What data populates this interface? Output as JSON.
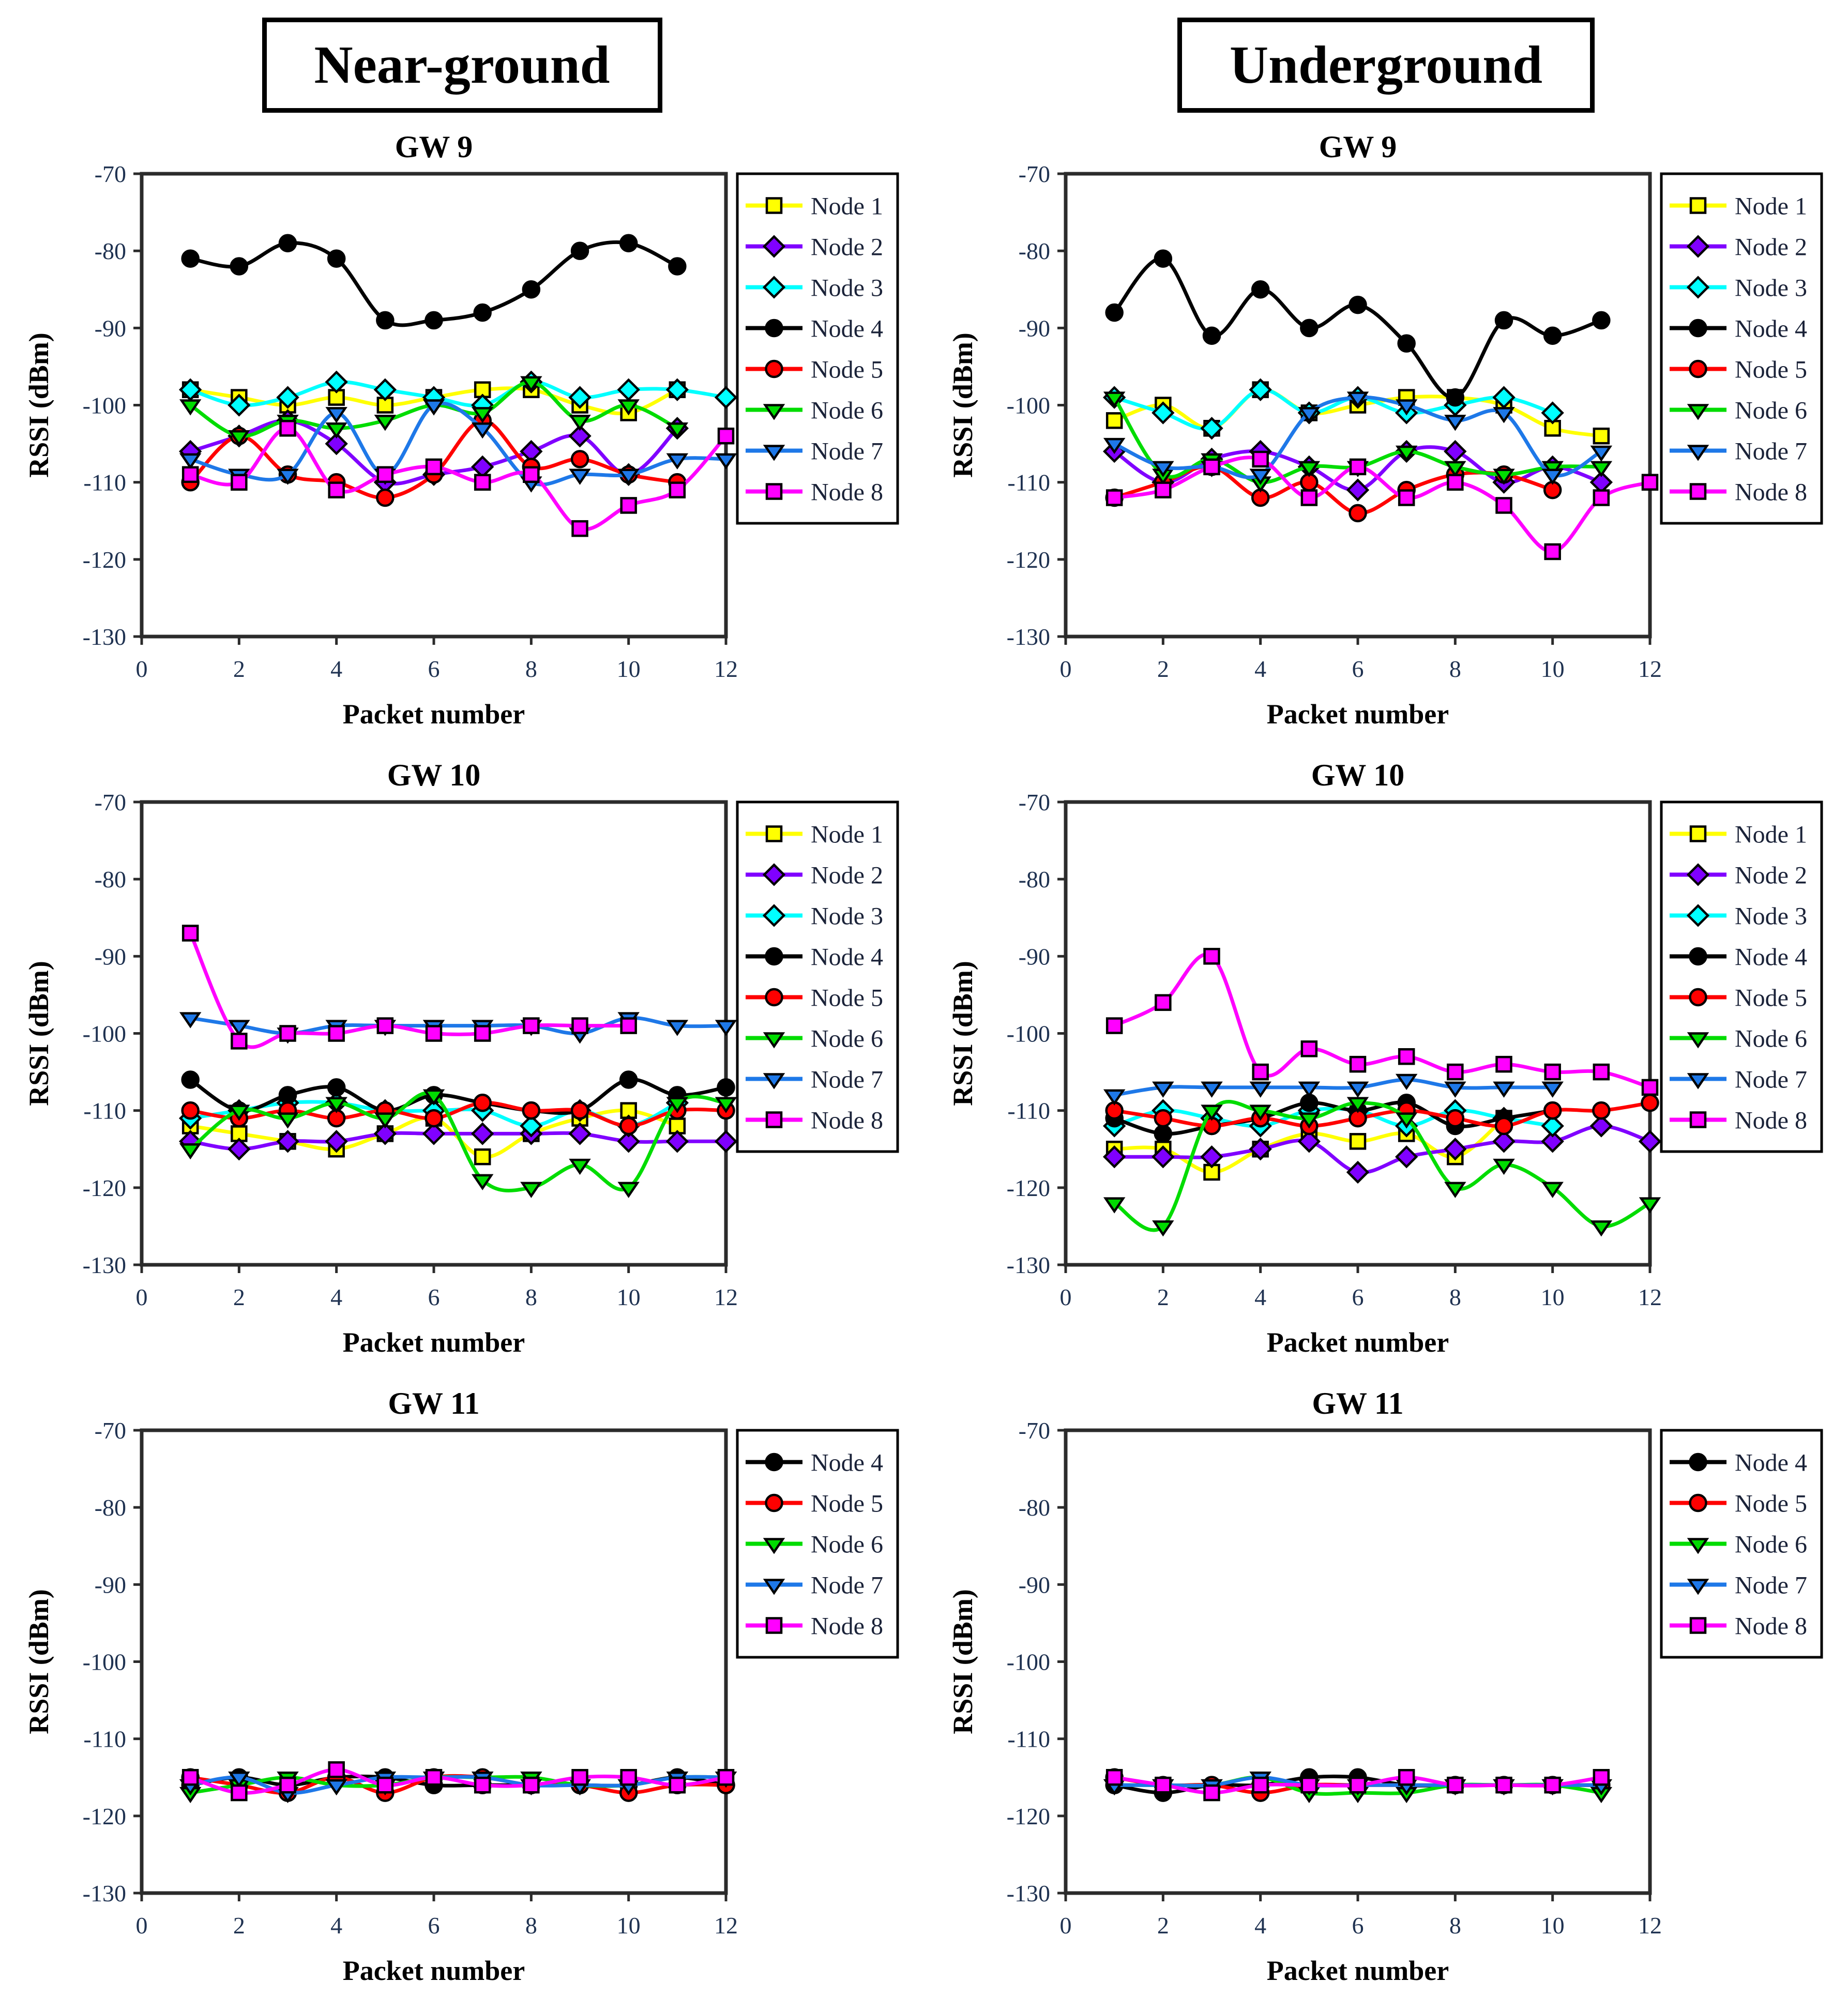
{
  "headers": [
    {
      "label": "Near-ground"
    },
    {
      "label": "Underground"
    }
  ],
  "style": {
    "tick_label_color": "#1f3251",
    "axis_frame_color": "#2b2b2b",
    "title_color": "#000000",
    "legend_text_color": "#1a2238",
    "background": "#ffffff"
  },
  "node_styles": {
    "Node 1": {
      "color": "#FFFF00",
      "marker": "square"
    },
    "Node 2": {
      "color": "#8000FF",
      "marker": "diamond"
    },
    "Node 3": {
      "color": "#00FFFF",
      "marker": "diamond"
    },
    "Node 4": {
      "color": "#000000",
      "marker": "circle"
    },
    "Node 5": {
      "color": "#FF0000",
      "marker": "circle"
    },
    "Node 6": {
      "color": "#00DC00",
      "marker": "triangle-down"
    },
    "Node 7": {
      "color": "#1E78E8",
      "marker": "triangle-down"
    },
    "Node 8": {
      "color": "#FF00FF",
      "marker": "square"
    }
  },
  "chart_data": [
    {
      "type": "line",
      "title": "GW 9",
      "column": "Near-ground",
      "xlabel": "Packet number",
      "ylabel": "RSSI (dBm)",
      "xlim": [
        0,
        12
      ],
      "ylim": [
        -130,
        -70
      ],
      "xticks": [
        0,
        2,
        4,
        6,
        8,
        10,
        12
      ],
      "yticks": [
        -70,
        -80,
        -90,
        -100,
        -110,
        -120,
        -130
      ],
      "grid": false,
      "legend_position": "right",
      "x_start": 1,
      "series": [
        {
          "name": "Node 1",
          "values": [
            -98,
            -99,
            -100,
            -99,
            -100,
            -99,
            -98,
            -98,
            -100,
            -101,
            -98
          ]
        },
        {
          "name": "Node 2",
          "values": [
            -106,
            -104,
            -102,
            -105,
            -110,
            -109,
            -108,
            -106,
            -104,
            -109,
            -103
          ]
        },
        {
          "name": "Node 3",
          "values": [
            -98,
            -100,
            -99,
            -97,
            -98,
            -99,
            -100,
            -97,
            -99,
            -98,
            -98,
            -99
          ]
        },
        {
          "name": "Node 4",
          "values": [
            -81,
            -82,
            -79,
            -81,
            -89,
            -89,
            -88,
            -85,
            -80,
            -79,
            -82
          ]
        },
        {
          "name": "Node 5",
          "values": [
            -110,
            -104,
            -109,
            -110,
            -112,
            -109,
            -102,
            -108,
            -107,
            -109,
            -110
          ]
        },
        {
          "name": "Node 6",
          "values": [
            -100,
            -104,
            -102,
            -103,
            -102,
            -100,
            -101,
            -97,
            -102,
            -100,
            -103
          ]
        },
        {
          "name": "Node 7",
          "values": [
            -107,
            -109,
            -109,
            -101,
            -109,
            -100,
            -103,
            -110,
            -109,
            -109,
            -107,
            -107
          ]
        },
        {
          "name": "Node 8",
          "values": [
            -109,
            -110,
            -103,
            -111,
            -109,
            -108,
            -110,
            -109,
            -116,
            -113,
            -111,
            -104
          ]
        }
      ]
    },
    {
      "type": "line",
      "title": "GW 9",
      "column": "Underground",
      "xlabel": "Packet number",
      "ylabel": "RSSI (dBm)",
      "xlim": [
        0,
        12
      ],
      "ylim": [
        -130,
        -70
      ],
      "xticks": [
        0,
        2,
        4,
        6,
        8,
        10,
        12
      ],
      "yticks": [
        -70,
        -80,
        -90,
        -100,
        -110,
        -120,
        -130
      ],
      "grid": false,
      "legend_position": "right",
      "x_start": 1,
      "series": [
        {
          "name": "Node 1",
          "values": [
            -102,
            -100,
            -103,
            -98,
            -101,
            -100,
            -99,
            -99,
            -100,
            -103,
            -104
          ]
        },
        {
          "name": "Node 2",
          "values": [
            -106,
            -110,
            -107,
            -106,
            -108,
            -111,
            -106,
            -106,
            -110,
            -108,
            -110
          ]
        },
        {
          "name": "Node 3",
          "values": [
            -99,
            -101,
            -103,
            -98,
            -101,
            -99,
            -101,
            -100,
            -99,
            -101
          ]
        },
        {
          "name": "Node 4",
          "values": [
            -88,
            -81,
            -91,
            -85,
            -90,
            -87,
            -92,
            -99,
            -89,
            -91,
            -89
          ]
        },
        {
          "name": "Node 5",
          "values": [
            -112,
            -110,
            -108,
            -112,
            -110,
            -114,
            -111,
            -109,
            -109,
            -111
          ]
        },
        {
          "name": "Node 6",
          "values": [
            -99,
            -109,
            -107,
            -110,
            -108,
            -108,
            -106,
            -108,
            -109,
            -108,
            -108
          ]
        },
        {
          "name": "Node 7",
          "values": [
            -105,
            -108,
            -108,
            -109,
            -101,
            -99,
            -100,
            -102,
            -101,
            -109,
            -106
          ]
        },
        {
          "name": "Node 8",
          "values": [
            -112,
            -111,
            -108,
            -107,
            -112,
            -108,
            -112,
            -110,
            -113,
            -119,
            -112,
            -110
          ]
        }
      ]
    },
    {
      "type": "line",
      "title": "GW 10",
      "column": "Near-ground",
      "xlabel": "Packet number",
      "ylabel": "RSSI (dBm)",
      "xlim": [
        0,
        12
      ],
      "ylim": [
        -130,
        -70
      ],
      "xticks": [
        0,
        2,
        4,
        6,
        8,
        10,
        12
      ],
      "yticks": [
        -70,
        -80,
        -90,
        -100,
        -110,
        -120,
        -130
      ],
      "grid": false,
      "legend_position": "right",
      "x_start": 1,
      "series": [
        {
          "name": "Node 1",
          "values": [
            -112,
            -113,
            -114,
            -115,
            -113,
            -111,
            -116,
            -113,
            -111,
            -110,
            -112
          ]
        },
        {
          "name": "Node 2",
          "values": [
            -114,
            -115,
            -114,
            -114,
            -113,
            -113,
            -113,
            -113,
            -113,
            -114,
            -114,
            -114
          ]
        },
        {
          "name": "Node 3",
          "values": [
            -111,
            -110,
            -109,
            -109,
            -110,
            -110,
            -110,
            -112,
            -110,
            -112,
            -109
          ]
        },
        {
          "name": "Node 4",
          "values": [
            -106,
            -110,
            -108,
            -107,
            -110,
            -108,
            -109,
            -110,
            -110,
            -106,
            -108,
            -107
          ]
        },
        {
          "name": "Node 5",
          "values": [
            -110,
            -111,
            -110,
            -111,
            -110,
            -111,
            -109,
            -110,
            -110,
            -112,
            -110,
            -110
          ]
        },
        {
          "name": "Node 6",
          "values": [
            -115,
            -110,
            -111,
            -109,
            -111,
            -108,
            -119,
            -120,
            -117,
            -120,
            -109,
            -109
          ]
        },
        {
          "name": "Node 7",
          "values": [
            -98,
            -99,
            -100,
            -99,
            -99,
            -99,
            -99,
            -99,
            -100,
            -98,
            -99,
            -99
          ]
        },
        {
          "name": "Node 8",
          "values": [
            -87,
            -101,
            -100,
            -100,
            -99,
            -100,
            -100,
            -99,
            -99,
            -99
          ]
        }
      ]
    },
    {
      "type": "line",
      "title": "GW 10",
      "column": "Underground",
      "xlabel": "Packet number",
      "ylabel": "RSSI (dBm)",
      "xlim": [
        0,
        12
      ],
      "ylim": [
        -130,
        -70
      ],
      "xticks": [
        0,
        2,
        4,
        6,
        8,
        10,
        12
      ],
      "yticks": [
        -70,
        -80,
        -90,
        -100,
        -110,
        -120,
        -130
      ],
      "grid": false,
      "legend_position": "right",
      "x_start": 1,
      "series": [
        {
          "name": "Node 1",
          "values": [
            -115,
            -115,
            -118,
            -115,
            -113,
            -114,
            -113,
            -116,
            -111
          ]
        },
        {
          "name": "Node 2",
          "values": [
            -116,
            -116,
            -116,
            -115,
            -114,
            -118,
            -116,
            -115,
            -114,
            -114,
            -112,
            -114
          ]
        },
        {
          "name": "Node 3",
          "values": [
            -112,
            -110,
            -111,
            -112,
            -110,
            -110,
            -112,
            -110,
            -111,
            -112
          ]
        },
        {
          "name": "Node 4",
          "values": [
            -111,
            -113,
            -112,
            -111,
            -109,
            -110,
            -109,
            -112,
            -111,
            -110
          ]
        },
        {
          "name": "Node 5",
          "values": [
            -110,
            -111,
            -112,
            -111,
            -112,
            -111,
            -110,
            -111,
            -112,
            -110,
            -110,
            -109
          ]
        },
        {
          "name": "Node 6",
          "values": [
            -122,
            -125,
            -110,
            -110,
            -111,
            -109,
            -111,
            -120,
            -117,
            -120,
            -125,
            -122
          ]
        },
        {
          "name": "Node 7",
          "values": [
            -108,
            -107,
            -107,
            -107,
            -107,
            -107,
            -106,
            -107,
            -107,
            -107
          ]
        },
        {
          "name": "Node 8",
          "values": [
            -99,
            -96,
            -90,
            -105,
            -102,
            -104,
            -103,
            -105,
            -104,
            -105,
            -105,
            -107
          ]
        }
      ]
    },
    {
      "type": "line",
      "title": "GW 11",
      "column": "Near-ground",
      "xlabel": "Packet number",
      "ylabel": "RSSI (dBm)",
      "xlim": [
        0,
        12
      ],
      "ylim": [
        -130,
        -70
      ],
      "xticks": [
        0,
        2,
        4,
        6,
        8,
        10,
        12
      ],
      "yticks": [
        -70,
        -80,
        -90,
        -100,
        -110,
        -120,
        -130
      ],
      "grid": false,
      "legend_position": "right",
      "x_start": 1,
      "series": [
        {
          "name": "Node 4",
          "values": [
            -116,
            -115,
            -116,
            -115,
            -115,
            -116,
            -116,
            -116,
            -116,
            -116,
            -115,
            -116
          ]
        },
        {
          "name": "Node 5",
          "values": [
            -115,
            -116,
            -117,
            -115,
            -117,
            -115,
            -115,
            -116,
            -116,
            -117,
            -116,
            -116
          ]
        },
        {
          "name": "Node 6",
          "values": [
            -117,
            -116,
            -115,
            -116,
            -116,
            -115,
            -115,
            -115,
            -116,
            -116,
            -115,
            -115
          ]
        },
        {
          "name": "Node 7",
          "values": [
            -116,
            -115,
            -117,
            -116,
            -115,
            -115,
            -115,
            -116,
            -116,
            -116,
            -115,
            -115
          ]
        },
        {
          "name": "Node 8",
          "values": [
            -115,
            -117,
            -116,
            -114,
            -116,
            -115,
            -116,
            -116,
            -115,
            -115,
            -116,
            -115
          ]
        }
      ]
    },
    {
      "type": "line",
      "title": "GW 11",
      "column": "Underground",
      "xlabel": "Packet number",
      "ylabel": "RSSI (dBm)",
      "xlim": [
        0,
        12
      ],
      "ylim": [
        -130,
        -70
      ],
      "xticks": [
        0,
        2,
        4,
        6,
        8,
        10,
        12
      ],
      "yticks": [
        -70,
        -80,
        -90,
        -100,
        -110,
        -120,
        -130
      ],
      "grid": false,
      "legend_position": "right",
      "x_start": 1,
      "series": [
        {
          "name": "Node 4",
          "values": [
            -116,
            -117,
            -116,
            -116,
            -115,
            -115,
            -116,
            -116,
            -116,
            -116,
            -116
          ]
        },
        {
          "name": "Node 5",
          "values": [
            -115,
            -116,
            -116,
            -117,
            -116,
            -116,
            -116,
            -116,
            -116,
            -116,
            -116
          ]
        },
        {
          "name": "Node 6",
          "values": [
            -116,
            -116,
            -116,
            -115,
            -117,
            -117,
            -117,
            -116,
            -116,
            -116,
            -117
          ]
        },
        {
          "name": "Node 7",
          "values": [
            -116,
            -116,
            -116,
            -115,
            -116,
            -116,
            -116,
            -116,
            -116,
            -116,
            -116
          ]
        },
        {
          "name": "Node 8",
          "values": [
            -115,
            -116,
            -117,
            -116,
            -116,
            -116,
            -115,
            -116,
            -116,
            -116,
            -115
          ]
        }
      ]
    }
  ]
}
